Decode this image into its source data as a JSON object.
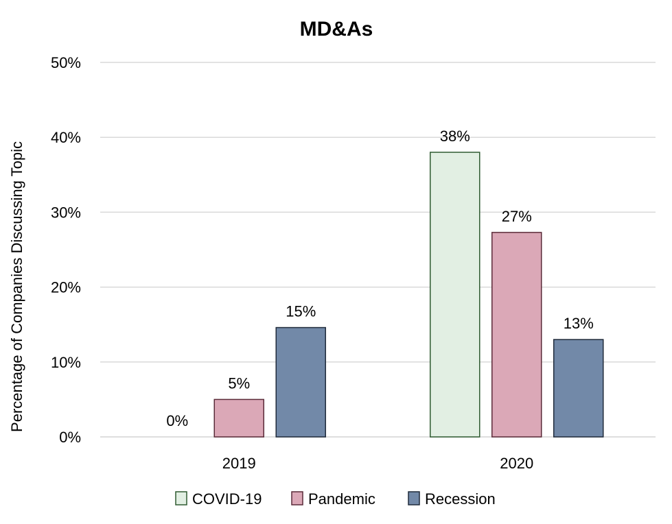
{
  "chart_data": {
    "type": "bar",
    "title": "MD&As",
    "xlabel": "",
    "ylabel": "Percentage of Companies Discussing Topic",
    "categories": [
      "2019",
      "2020"
    ],
    "series": [
      {
        "name": "COVID-19",
        "values": [
          0,
          38
        ],
        "labels": [
          "0%",
          "38%"
        ],
        "color": "#e2efe3",
        "edge": "#2e5a30"
      },
      {
        "name": "Pandemic",
        "values": [
          5,
          27.3
        ],
        "labels": [
          "5%",
          "27%"
        ],
        "color": "#dba8b7",
        "edge": "#5a2a38"
      },
      {
        "name": "Recession",
        "values": [
          14.6,
          13
        ],
        "labels": [
          "15%",
          "13%"
        ],
        "color": "#7289a8",
        "edge": "#1f2a3a"
      }
    ],
    "yticks": [
      "0%",
      "10%",
      "20%",
      "30%",
      "40%",
      "50%"
    ],
    "ytick_values": [
      0,
      10,
      20,
      30,
      40,
      50
    ],
    "ylim": [
      0,
      50
    ],
    "grid": true,
    "legend_position": "bottom"
  }
}
